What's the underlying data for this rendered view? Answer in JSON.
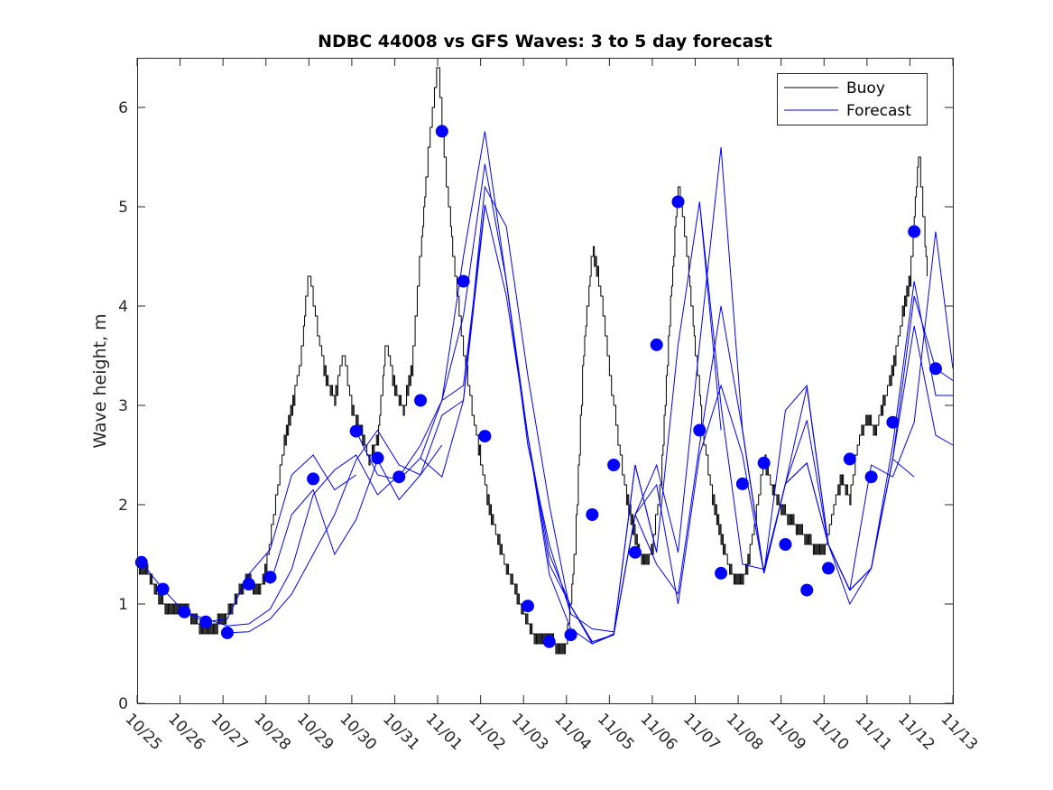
{
  "chart_data": {
    "type": "line",
    "title": "NDBC 44008 vs GFS Waves: 3 to 5 day forecast",
    "xlabel": "",
    "ylabel": "Wave height, m",
    "ylim": [
      0,
      6.5
    ],
    "yticks": [
      0,
      1,
      2,
      3,
      4,
      5,
      6
    ],
    "xlim_days": [
      0,
      19
    ],
    "xtick_labels": [
      "10/25",
      "10/26",
      "10/27",
      "10/28",
      "10/29",
      "10/30",
      "10/31",
      "11/01",
      "11/02",
      "11/03",
      "11/04",
      "11/05",
      "11/06",
      "11/07",
      "11/08",
      "11/09",
      "11/10",
      "11/11",
      "11/12",
      "11/13"
    ],
    "x_units": "days since 10/25 00:00",
    "grid": false,
    "legend": {
      "position": "top-right",
      "entries": [
        {
          "label": "Buoy",
          "color": "#000000"
        },
        {
          "label": "Forecast",
          "color": "#0000ff"
        }
      ]
    },
    "series": [
      {
        "name": "Buoy",
        "color": "#000000",
        "x": [
          0,
          0.2,
          0.4,
          0.6,
          0.8,
          1.0,
          1.2,
          1.4,
          1.6,
          1.8,
          2.0,
          2.2,
          2.4,
          2.6,
          2.8,
          3.0,
          3.2,
          3.4,
          3.6,
          3.8,
          4.0,
          4.2,
          4.4,
          4.6,
          4.8,
          5.0,
          5.2,
          5.4,
          5.6,
          5.8,
          6.0,
          6.2,
          6.4,
          6.6,
          6.8,
          7.0,
          7.2,
          7.4,
          7.6,
          7.8,
          8.0,
          8.2,
          8.4,
          8.6,
          8.8,
          9.0,
          9.2,
          9.4,
          9.6,
          9.8,
          10.0,
          10.2,
          10.4,
          10.6,
          10.8,
          11.0,
          11.2,
          11.4,
          11.6,
          11.8,
          12.0,
          12.2,
          12.4,
          12.6,
          12.8,
          13.0,
          13.2,
          13.4,
          13.6,
          13.8,
          14.0,
          14.2,
          14.4,
          14.6,
          14.8,
          15.0,
          15.2,
          15.4,
          15.6,
          15.8,
          16.0,
          16.2,
          16.4,
          16.6,
          16.8,
          17.0,
          17.2,
          17.4,
          17.6,
          17.8,
          18.0,
          18.2,
          18.4
        ],
        "values": [
          1.35,
          1.3,
          1.1,
          0.95,
          0.9,
          0.9,
          0.85,
          0.75,
          0.7,
          0.72,
          0.8,
          0.9,
          1.1,
          1.2,
          1.05,
          1.3,
          1.9,
          2.5,
          2.9,
          3.4,
          4.3,
          3.7,
          3.2,
          3.0,
          3.5,
          2.9,
          2.7,
          2.4,
          2.6,
          3.6,
          3.1,
          2.9,
          3.3,
          4.5,
          5.6,
          6.4,
          5.2,
          4.3,
          3.5,
          2.9,
          2.4,
          1.9,
          1.6,
          1.3,
          1.1,
          0.85,
          0.65,
          0.6,
          0.6,
          0.5,
          0.55,
          1.5,
          3.5,
          4.5,
          4.1,
          3.3,
          2.6,
          2.0,
          1.6,
          1.35,
          1.5,
          2.2,
          3.8,
          5.2,
          4.5,
          3.5,
          2.6,
          2.0,
          1.6,
          1.3,
          1.15,
          1.3,
          1.8,
          2.4,
          2.1,
          1.9,
          1.8,
          1.7,
          1.6,
          1.5,
          1.45,
          1.9,
          2.2,
          2.0,
          2.6,
          2.8,
          2.7,
          3.0,
          3.3,
          3.8,
          4.2,
          5.5,
          4.3
        ]
      },
      {
        "name": "Forecast",
        "color": "#0000ff",
        "runs": [
          {
            "x": [
              0.1,
              0.6,
              1.1,
              1.6,
              2.1,
              2.6,
              3.1,
              3.6,
              4.1,
              4.6,
              5.1
            ],
            "values": [
              1.42,
              1.15,
              0.92,
              0.82,
              0.85,
              1.3,
              1.55,
              2.3,
              2.5,
              2.15,
              2.3
            ]
          },
          {
            "x": [
              1.1,
              1.6,
              2.1,
              2.6,
              3.1,
              3.6,
              4.1,
              4.6,
              5.1,
              5.6,
              6.1
            ],
            "values": [
              0.92,
              0.85,
              0.78,
              0.8,
              0.95,
              1.35,
              2.1,
              2.35,
              2.5,
              2.1,
              2.3
            ]
          },
          {
            "x": [
              2.1,
              2.6,
              3.1,
              3.6,
              4.1,
              4.6,
              5.1,
              5.6,
              6.1,
              6.6,
              7.1
            ],
            "values": [
              0.71,
              0.72,
              0.85,
              1.1,
              1.5,
              1.9,
              2.45,
              2.75,
              2.4,
              2.3,
              2.6
            ]
          },
          {
            "x": [
              3.1,
              3.6,
              4.1,
              4.6,
              5.1,
              5.6,
              6.1,
              6.6,
              7.1,
              7.6,
              8.1
            ],
            "values": [
              1.2,
              1.9,
              2.15,
              1.5,
              1.85,
              2.45,
              2.05,
              2.3,
              2.9,
              3.05,
              5.0
            ]
          },
          {
            "x": [
              5.1,
              5.6,
              6.1,
              6.6,
              7.1,
              7.6,
              8.1,
              8.6,
              9.1,
              9.6,
              10.1
            ],
            "values": [
              2.74,
              2.3,
              2.25,
              2.47,
              2.28,
              3.05,
              5.2,
              4.8,
              3.3,
              2.0,
              0.9
            ]
          },
          {
            "x": [
              6.1,
              6.6,
              7.1,
              7.6,
              8.1,
              8.6,
              9.1,
              9.6,
              10.1,
              10.6,
              11.1
            ],
            "values": [
              2.28,
              2.6,
              3.05,
              4.5,
              5.76,
              4.25,
              2.6,
              1.6,
              0.9,
              0.75,
              0.72
            ]
          },
          {
            "x": [
              6.6,
              7.1,
              7.6,
              8.1,
              8.6,
              9.1,
              9.6,
              10.1,
              10.6,
              11.1,
              11.6
            ],
            "values": [
              2.47,
              3.05,
              3.9,
              5.43,
              4.25,
              2.69,
              1.5,
              0.98,
              0.62,
              0.69,
              1.9
            ]
          },
          {
            "x": [
              7.1,
              7.6,
              8.1,
              8.6,
              9.1,
              9.6,
              10.1,
              10.6,
              11.1,
              11.6,
              12.1
            ],
            "values": [
              3.05,
              3.2,
              5.02,
              4.1,
              2.69,
              1.3,
              0.75,
              0.6,
              0.7,
              2.4,
              1.52
            ]
          },
          {
            "x": [
              8.6,
              9.1,
              9.6,
              10.1,
              10.6,
              11.1,
              11.6,
              12.1,
              12.6,
              13.1,
              13.6
            ],
            "values": [
              4.25,
              2.69,
              1.4,
              0.98,
              0.62,
              0.69,
              2.4,
              1.52,
              3.61,
              5.05,
              2.75
            ]
          },
          {
            "x": [
              10.1,
              10.6,
              11.1,
              11.6,
              12.1,
              12.6,
              13.1,
              13.6,
              14.1,
              14.6,
              15.1
            ],
            "values": [
              0.98,
              0.6,
              0.69,
              1.9,
              2.4,
              1.52,
              3.61,
              5.6,
              2.75,
              1.31,
              2.21
            ]
          },
          {
            "x": [
              11.1,
              11.6,
              12.1,
              12.6,
              13.1,
              13.6,
              14.1,
              14.6,
              15.1,
              15.6,
              16.1
            ],
            "values": [
              0.69,
              1.9,
              1.4,
              1.1,
              2.6,
              4.0,
              2.75,
              1.31,
              2.95,
              3.2,
              1.6
            ]
          },
          {
            "x": [
              11.6,
              12.1,
              12.6,
              13.1,
              13.6,
              14.1,
              14.6,
              15.1,
              15.6,
              16.1,
              16.6
            ],
            "values": [
              1.9,
              2.2,
              1.0,
              2.5,
              3.2,
              2.5,
              1.31,
              2.21,
              3.18,
              1.6,
              1.14
            ]
          },
          {
            "x": [
              13.1,
              13.6,
              14.1,
              14.6,
              15.1,
              15.6,
              16.1,
              16.6,
              17.1,
              17.6,
              18.1
            ],
            "values": [
              5.05,
              3.0,
              1.4,
              1.35,
              2.21,
              2.42,
              1.6,
              1.14,
              1.36,
              2.46,
              2.28
            ]
          },
          {
            "x": [
              14.1,
              14.6,
              15.1,
              15.6,
              16.1,
              16.6,
              17.1,
              17.6,
              18.1,
              18.6,
              19.0
            ],
            "values": [
              2.75,
              1.31,
              2.21,
              2.85,
              1.6,
              1.14,
              1.36,
              2.46,
              4.1,
              3.37,
              3.25
            ]
          },
          {
            "x": [
              15.1,
              15.6,
              16.1,
              16.6,
              17.1,
              17.6,
              18.1,
              18.6,
              19.0
            ],
            "values": [
              2.21,
              2.42,
              1.6,
              1.0,
              1.36,
              2.6,
              4.25,
              3.1,
              3.1
            ]
          },
          {
            "x": [
              16.1,
              16.6,
              17.1,
              17.6,
              18.1,
              18.6,
              19.0
            ],
            "values": [
              1.6,
              1.14,
              1.36,
              2.46,
              3.8,
              2.7,
              2.6
            ]
          },
          {
            "x": [
              16.6,
              17.1,
              17.6,
              18.1,
              18.6,
              19.0
            ],
            "values": [
              1.14,
              2.4,
              2.28,
              2.83,
              4.75,
              3.37
            ]
          }
        ]
      },
      {
        "name": "Forecast markers",
        "color": "#0000ff",
        "marker": "filled-circle",
        "x": [
          0.1,
          0.6,
          1.1,
          1.6,
          2.1,
          2.6,
          3.1,
          4.1,
          5.1,
          5.6,
          6.1,
          6.6,
          7.1,
          7.6,
          8.1,
          9.1,
          9.6,
          10.1,
          10.6,
          11.1,
          11.6,
          12.1,
          12.6,
          13.1,
          13.6,
          14.1,
          14.6,
          15.1,
          15.6,
          16.1,
          16.6,
          17.1,
          17.6,
          18.1,
          18.6
        ],
        "values": [
          1.42,
          1.15,
          0.92,
          0.82,
          0.71,
          1.2,
          1.27,
          2.26,
          2.74,
          2.47,
          2.28,
          3.05,
          5.76,
          4.25,
          2.69,
          0.98,
          0.62,
          0.69,
          1.9,
          2.4,
          1.52,
          3.61,
          5.05,
          2.75,
          1.31,
          2.21,
          2.42,
          1.6,
          1.14,
          1.36,
          2.46,
          2.28,
          2.83,
          4.75,
          3.37
        ]
      }
    ]
  }
}
